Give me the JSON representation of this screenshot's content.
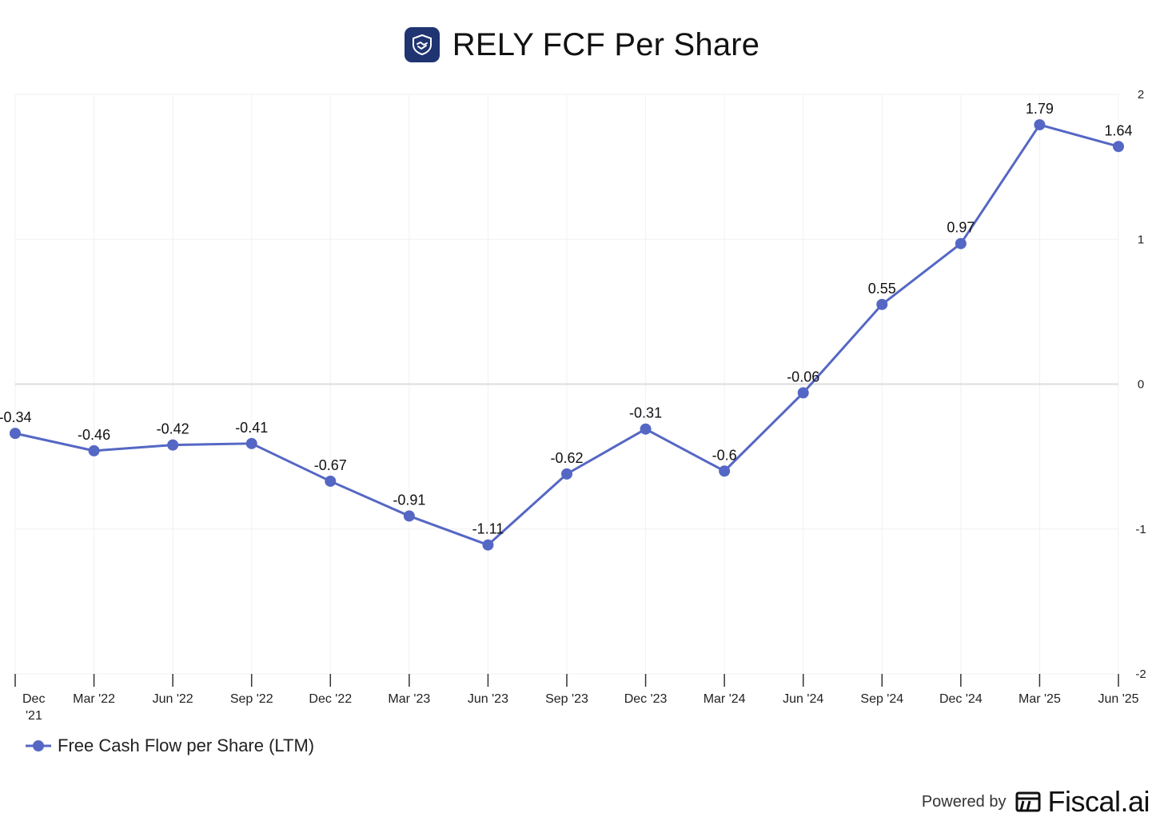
{
  "header": {
    "title": "RELY FCF Per Share",
    "logo_icon": "shield-handshake-icon"
  },
  "chart_data": {
    "type": "line",
    "title": "RELY FCF Per Share",
    "categories": [
      "Dec\n'21",
      "Mar '22",
      "Jun '22",
      "Sep '22",
      "Dec '22",
      "Mar '23",
      "Jun '23",
      "Sep '23",
      "Dec '23",
      "Mar '24",
      "Jun '24",
      "Sep '24",
      "Dec '24",
      "Mar '25",
      "Jun '25"
    ],
    "series": [
      {
        "name": "Free Cash Flow per Share (LTM)",
        "color": "#5567c4",
        "values": [
          -0.34,
          -0.46,
          -0.42,
          -0.41,
          -0.67,
          -0.91,
          -1.11,
          -0.62,
          -0.31,
          -0.6,
          -0.06,
          0.55,
          0.97,
          1.79,
          1.64
        ]
      }
    ],
    "data_labels": [
      "-0.34",
      "-0.46",
      "-0.42",
      "-0.41",
      "-0.67",
      "-0.91",
      "-1.11",
      "-0.62",
      "-0.31",
      "-0.6",
      "-0.06",
      "0.55",
      "0.97",
      "1.79",
      "1.64"
    ],
    "ylim": [
      -2,
      2
    ],
    "yticks": [
      "2",
      "1",
      "0",
      "-1",
      "-2"
    ],
    "xlabel": "",
    "ylabel": "",
    "grid": true,
    "legend_position": "bottom-left"
  },
  "legend": {
    "label": "Free Cash Flow per Share (LTM)"
  },
  "footer": {
    "powered_by": "Powered by",
    "brand": "Fiscal.ai",
    "brand_icon": "fiscal-ai-logo-icon"
  }
}
